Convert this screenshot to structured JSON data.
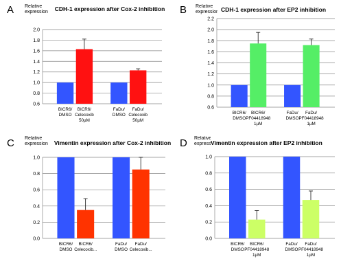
{
  "chart_data": [
    {
      "panel": "A",
      "type": "bar",
      "title": "CDH-1 expression after Cox-2 inhibition",
      "ylabel": "Relative expression",
      "ylim": [
        0.6,
        2.0
      ],
      "yticks": [
        "0.6",
        "0.8",
        "1.0",
        "1.2",
        "1.4",
        "1.6",
        "1.8",
        "2.0"
      ],
      "grid": true,
      "categories": [
        {
          "line1": "BICR6/",
          "line2": "DMSO",
          "line3": ""
        },
        {
          "line1": "BICR6/",
          "line2": "Celecoxib",
          "line3": "50µM"
        },
        {
          "line1": "FaDu/",
          "line2": "DMSO",
          "line3": ""
        },
        {
          "line1": "FaDu/",
          "line2": "Celecoxib",
          "line3": "50µM"
        }
      ],
      "values": [
        1.0,
        1.63,
        1.0,
        1.23
      ],
      "errors": [
        0,
        0.19,
        0,
        0.03
      ],
      "colors": [
        "#3355ff",
        "#ff1111",
        "#3355ff",
        "#ff1111"
      ]
    },
    {
      "panel": "B",
      "type": "bar",
      "title": "CDH-1 expression after EP2 inhibition",
      "ylabel": "Relative expression",
      "ylim": [
        0.6,
        2.2
      ],
      "yticks": [
        "0.6",
        "0.8",
        "1.0",
        "1.2",
        "1.4",
        "1.6",
        "1.8",
        "2.0",
        "2.2"
      ],
      "grid": true,
      "categories": [
        {
          "line1": "BICR6/",
          "line2": "DMSO",
          "line3": ""
        },
        {
          "line1": "BICR6/",
          "line2": "PF04418948",
          "line3": "1µM"
        },
        {
          "line1": "FaDu/",
          "line2": "DMSO",
          "line3": ""
        },
        {
          "line1": "FaDu/",
          "line2": "PF04418948",
          "line3": "1µM"
        }
      ],
      "values": [
        1.0,
        1.75,
        1.0,
        1.72
      ],
      "errors": [
        0,
        0.2,
        0,
        0.11
      ],
      "colors": [
        "#3355ff",
        "#55ee66",
        "#3355ff",
        "#55ee66"
      ]
    },
    {
      "panel": "C",
      "type": "bar",
      "title": "Vimentin expression after Cox-2 inhibition",
      "ylabel": "Relative expression",
      "ylim": [
        0.0,
        1.0
      ],
      "yticks": [
        "0.0",
        "0.2",
        "0.4",
        "0.6",
        "0.8",
        "1.0"
      ],
      "grid": true,
      "categories": [
        {
          "line1": "BICR6/",
          "line2": "DMSO",
          "line3": ""
        },
        {
          "line1": "BICR6/",
          "line2": "Celecoxib...",
          "line3": ""
        },
        {
          "line1": "FaDu/",
          "line2": "DMSO",
          "line3": ""
        },
        {
          "line1": "FaDu/",
          "line2": "Celecoxib...",
          "line3": ""
        }
      ],
      "values": [
        1.0,
        0.35,
        1.0,
        0.85
      ],
      "errors": [
        0,
        0.14,
        0,
        0.15
      ],
      "colors": [
        "#3355ff",
        "#ff3300",
        "#3355ff",
        "#ff3300"
      ]
    },
    {
      "panel": "D",
      "type": "bar",
      "title": "Vimentin expression after EP2 inhibition",
      "ylabel": "Relative expression",
      "ylim": [
        0.0,
        1.0
      ],
      "yticks": [
        "0.0",
        "0.2",
        "0.4",
        "0.6",
        "0.8",
        "1.0"
      ],
      "grid": true,
      "categories": [
        {
          "line1": "BICR6/",
          "line2": "DMSO",
          "line3": ""
        },
        {
          "line1": "BICR6/",
          "line2": "PF04418948",
          "line3": "1µM"
        },
        {
          "line1": "FaDu/",
          "line2": "DMSO",
          "line3": ""
        },
        {
          "line1": "FaDu/",
          "line2": "PF04418948",
          "line3": "1µM"
        }
      ],
      "values": [
        1.0,
        0.23,
        1.0,
        0.47
      ],
      "errors": [
        0,
        0.11,
        0,
        0.11
      ],
      "colors": [
        "#3355ff",
        "#ccff66",
        "#3355ff",
        "#ccff66"
      ]
    }
  ]
}
